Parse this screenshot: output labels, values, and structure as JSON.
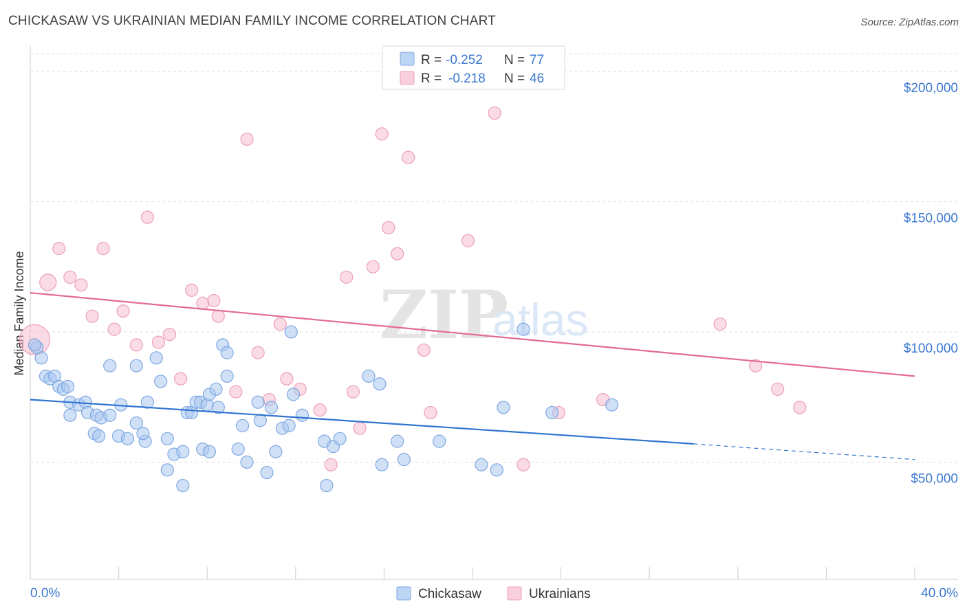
{
  "title": "CHICKASAW VS UKRAINIAN MEDIAN FAMILY INCOME CORRELATION CHART",
  "source": "Source: ZipAtlas.com",
  "watermark": {
    "part1": "ZIP",
    "part2": "atlas"
  },
  "stats": [
    {
      "r_label": "R =",
      "r_value": "-0.252",
      "n_label": "N =",
      "n_value": "77"
    },
    {
      "r_label": "R =",
      "r_value": "-0.218",
      "n_label": "N =",
      "n_value": "46"
    }
  ],
  "chart_data": {
    "type": "scatter",
    "title": "CHICKASAW VS UKRAINIAN MEDIAN FAMILY INCOME CORRELATION CHART",
    "xlabel": "",
    "ylabel": "Median Family Income",
    "xlim": [
      0,
      40
    ],
    "ylim": [
      5000,
      210000
    ],
    "x_tick_labels": [
      "0.0%",
      "40.0%"
    ],
    "y_ticks": [
      50000,
      100000,
      150000,
      200000
    ],
    "y_tick_labels": [
      "$50,000",
      "$100,000",
      "$150,000",
      "$200,000"
    ],
    "grid": true,
    "legend_position": "bottom-center",
    "colors": {
      "Chickasaw": "#a9c8f0",
      "Ukrainians": "#f7b8cb",
      "Chickasaw_line": "#2f74d0",
      "Ukrainians_line": "#e46a94"
    },
    "series": [
      {
        "name": "Chickasaw",
        "trend": {
          "x": [
            0,
            30
          ],
          "y": [
            74000,
            57000
          ],
          "dashed_to_x": 40,
          "dashed_to_y": 51000
        },
        "points": [
          [
            0.3,
            94000
          ],
          [
            0.5,
            90000
          ],
          [
            0.7,
            83000
          ],
          [
            0.9,
            82000
          ],
          [
            1.1,
            83000
          ],
          [
            1.3,
            79000
          ],
          [
            1.5,
            78000
          ],
          [
            1.7,
            79000
          ],
          [
            1.8,
            73000
          ],
          [
            2.2,
            72000
          ],
          [
            2.5,
            73000
          ],
          [
            1.8,
            68000
          ],
          [
            2.6,
            69000
          ],
          [
            3.0,
            68000
          ],
          [
            3.2,
            67000
          ],
          [
            3.6,
            68000
          ],
          [
            4.1,
            72000
          ],
          [
            3.6,
            87000
          ],
          [
            4.8,
            87000
          ],
          [
            2.9,
            61000
          ],
          [
            3.1,
            60000
          ],
          [
            4.0,
            60000
          ],
          [
            4.4,
            59000
          ],
          [
            4.8,
            65000
          ],
          [
            5.2,
            58000
          ],
          [
            5.1,
            61000
          ],
          [
            5.3,
            73000
          ],
          [
            5.7,
            90000
          ],
          [
            5.9,
            81000
          ],
          [
            6.2,
            47000
          ],
          [
            6.2,
            59000
          ],
          [
            6.5,
            53000
          ],
          [
            6.9,
            54000
          ],
          [
            6.9,
            41000
          ],
          [
            7.1,
            69000
          ],
          [
            7.3,
            69000
          ],
          [
            7.5,
            73000
          ],
          [
            7.7,
            73000
          ],
          [
            7.8,
            55000
          ],
          [
            8.0,
            72000
          ],
          [
            8.1,
            76000
          ],
          [
            8.1,
            54000
          ],
          [
            8.4,
            78000
          ],
          [
            8.5,
            71000
          ],
          [
            8.7,
            95000
          ],
          [
            8.9,
            92000
          ],
          [
            8.9,
            83000
          ],
          [
            9.4,
            55000
          ],
          [
            9.6,
            64000
          ],
          [
            9.8,
            50000
          ],
          [
            10.3,
            73000
          ],
          [
            10.4,
            66000
          ],
          [
            10.7,
            46000
          ],
          [
            10.9,
            71000
          ],
          [
            11.1,
            54000
          ],
          [
            11.4,
            63000
          ],
          [
            11.8,
            100000
          ],
          [
            11.7,
            64000
          ],
          [
            11.9,
            76000
          ],
          [
            12.3,
            68000
          ],
          [
            13.3,
            58000
          ],
          [
            13.4,
            41000
          ],
          [
            13.7,
            56000
          ],
          [
            14.0,
            59000
          ],
          [
            15.3,
            83000
          ],
          [
            15.8,
            80000
          ],
          [
            15.9,
            49000
          ],
          [
            16.6,
            58000
          ],
          [
            16.9,
            51000
          ],
          [
            18.5,
            58000
          ],
          [
            20.4,
            49000
          ],
          [
            21.1,
            47000
          ],
          [
            21.4,
            71000
          ],
          [
            22.3,
            101000
          ],
          [
            23.6,
            69000
          ],
          [
            26.3,
            72000
          ],
          [
            0.2,
            95000
          ]
        ]
      },
      {
        "name": "Ukrainians",
        "trend": {
          "x": [
            0,
            40
          ],
          "y": [
            115000,
            83000
          ]
        },
        "points": [
          [
            0.2,
            97000
          ],
          [
            0.8,
            119000
          ],
          [
            1.3,
            132000
          ],
          [
            1.8,
            121000
          ],
          [
            2.3,
            118000
          ],
          [
            2.8,
            106000
          ],
          [
            3.3,
            132000
          ],
          [
            3.8,
            101000
          ],
          [
            4.2,
            108000
          ],
          [
            4.8,
            95000
          ],
          [
            5.3,
            144000
          ],
          [
            5.8,
            96000
          ],
          [
            6.3,
            99000
          ],
          [
            6.8,
            82000
          ],
          [
            7.3,
            116000
          ],
          [
            7.8,
            111000
          ],
          [
            8.3,
            112000
          ],
          [
            8.5,
            106000
          ],
          [
            9.3,
            77000
          ],
          [
            9.8,
            174000
          ],
          [
            10.3,
            92000
          ],
          [
            10.8,
            74000
          ],
          [
            11.3,
            103000
          ],
          [
            11.6,
            82000
          ],
          [
            12.2,
            78000
          ],
          [
            13.1,
            70000
          ],
          [
            13.6,
            49000
          ],
          [
            14.3,
            121000
          ],
          [
            14.6,
            77000
          ],
          [
            14.9,
            63000
          ],
          [
            15.5,
            125000
          ],
          [
            15.9,
            176000
          ],
          [
            16.2,
            140000
          ],
          [
            16.6,
            130000
          ],
          [
            17.1,
            167000
          ],
          [
            17.8,
            93000
          ],
          [
            18.1,
            69000
          ],
          [
            19.8,
            135000
          ],
          [
            21.0,
            184000
          ],
          [
            22.3,
            49000
          ],
          [
            23.9,
            69000
          ],
          [
            25.9,
            74000
          ],
          [
            31.2,
            103000
          ],
          [
            32.8,
            87000
          ],
          [
            33.8,
            78000
          ],
          [
            34.8,
            71000
          ]
        ]
      }
    ]
  }
}
